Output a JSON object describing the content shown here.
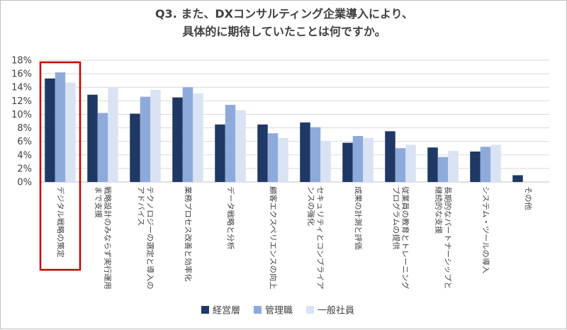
{
  "chart_data": {
    "type": "bar",
    "title_lines": [
      "Q3. また、DXコンサルティング企業導入により、",
      "具体的に期待していたことは何ですか。"
    ],
    "xlabel": "",
    "ylabel": "",
    "ylim": [
      0,
      18
    ],
    "ytick_labels": [
      "0%",
      "2%",
      "4%",
      "6%",
      "8%",
      "10%",
      "12%",
      "14%",
      "16%",
      "18%"
    ],
    "grid": true,
    "legend_position": "bottom",
    "categories": [
      [
        "デジタル戦略の策定"
      ],
      [
        "戦略設計のみならず実行運用",
        "まで支援"
      ],
      [
        "テクノロジーの選定と導入の",
        "アドバイス"
      ],
      [
        "業務プロセス改善と効率化"
      ],
      [
        "データ戦略と分析"
      ],
      [
        "顧客エクスペリエンスの向上"
      ],
      [
        "セキュリティとコンプライア",
        "ンスの強化"
      ],
      [
        "成果の計測と評価"
      ],
      [
        "従業員の教育とトレーニング",
        "プログラムの提供"
      ],
      [
        "長期的なパートナーシップと",
        "継続的な支援"
      ],
      [
        "システム・ツールの導入"
      ],
      [
        "その他"
      ]
    ],
    "series": [
      {
        "name": "経営層",
        "color": "#1f3864",
        "values": [
          15.3,
          12.9,
          10.1,
          12.5,
          8.5,
          8.5,
          8.8,
          5.8,
          7.5,
          5.1,
          4.5,
          1.0
        ]
      },
      {
        "name": "管理職",
        "color": "#8eaadb",
        "values": [
          16.2,
          10.2,
          12.6,
          14.0,
          11.4,
          7.2,
          8.1,
          6.8,
          5.0,
          3.7,
          5.2,
          0.0
        ]
      },
      {
        "name": "一般社員",
        "color": "#dae3f3",
        "values": [
          14.7,
          13.9,
          13.6,
          13.1,
          10.6,
          6.5,
          6.1,
          6.5,
          5.5,
          4.6,
          5.5,
          0.0
        ]
      }
    ],
    "highlight_category_index": 0,
    "highlight_color": "#c00000"
  }
}
